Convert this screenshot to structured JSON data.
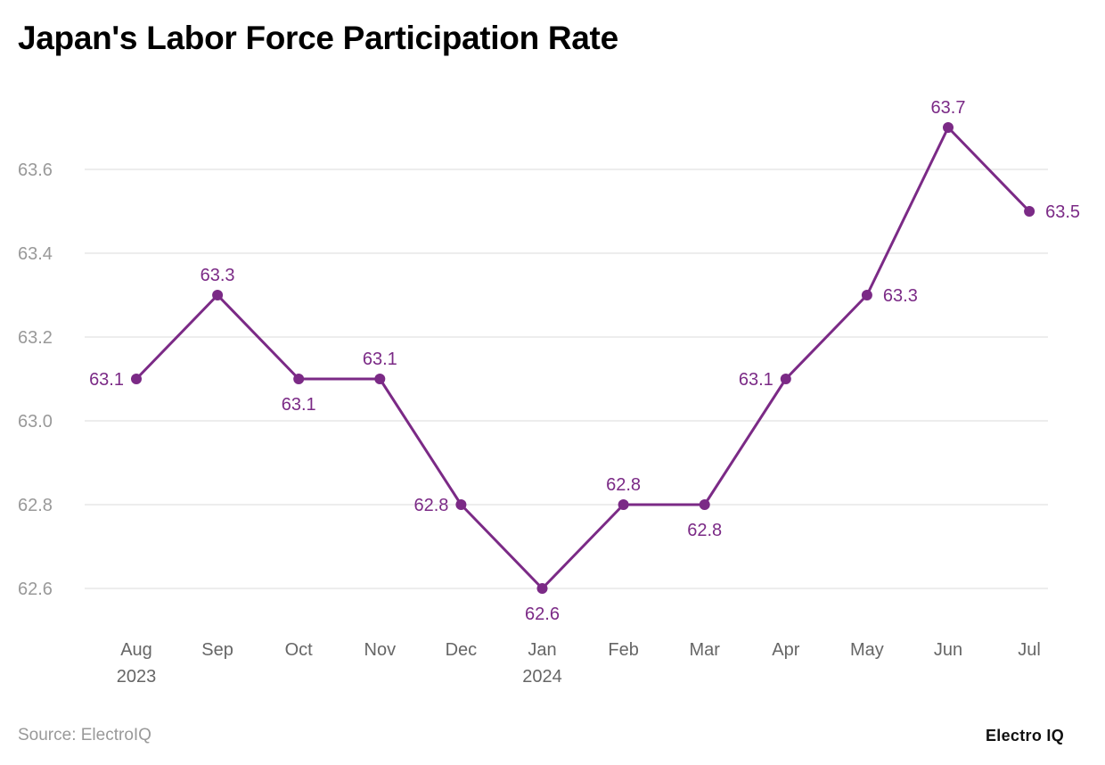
{
  "chart_data": {
    "type": "line",
    "title": "Japan's Labor Force Participation Rate",
    "xlabel": "",
    "ylabel": "",
    "categories": [
      {
        "label": "Aug",
        "sub": "2023"
      },
      {
        "label": "Sep",
        "sub": ""
      },
      {
        "label": "Oct",
        "sub": ""
      },
      {
        "label": "Nov",
        "sub": ""
      },
      {
        "label": "Dec",
        "sub": ""
      },
      {
        "label": "Jan",
        "sub": "2024"
      },
      {
        "label": "Feb",
        "sub": ""
      },
      {
        "label": "Mar",
        "sub": ""
      },
      {
        "label": "Apr",
        "sub": ""
      },
      {
        "label": "May",
        "sub": ""
      },
      {
        "label": "Jun",
        "sub": ""
      },
      {
        "label": "Jul",
        "sub": ""
      }
    ],
    "values": [
      63.1,
      63.3,
      63.1,
      63.1,
      62.8,
      62.6,
      62.8,
      62.8,
      63.1,
      63.3,
      63.7,
      63.5
    ],
    "yticks": [
      "62.6",
      "62.8",
      "63.0",
      "63.2",
      "63.4",
      "63.6"
    ],
    "ylim": [
      62.45,
      63.8
    ],
    "grid": true,
    "legend": "none",
    "line_color": "#7b2a86",
    "grid_color": "#e2e2e2",
    "tick_color": "#999999"
  },
  "footer": {
    "source": "Source: ElectroIQ",
    "logo": "Electro IQ"
  }
}
